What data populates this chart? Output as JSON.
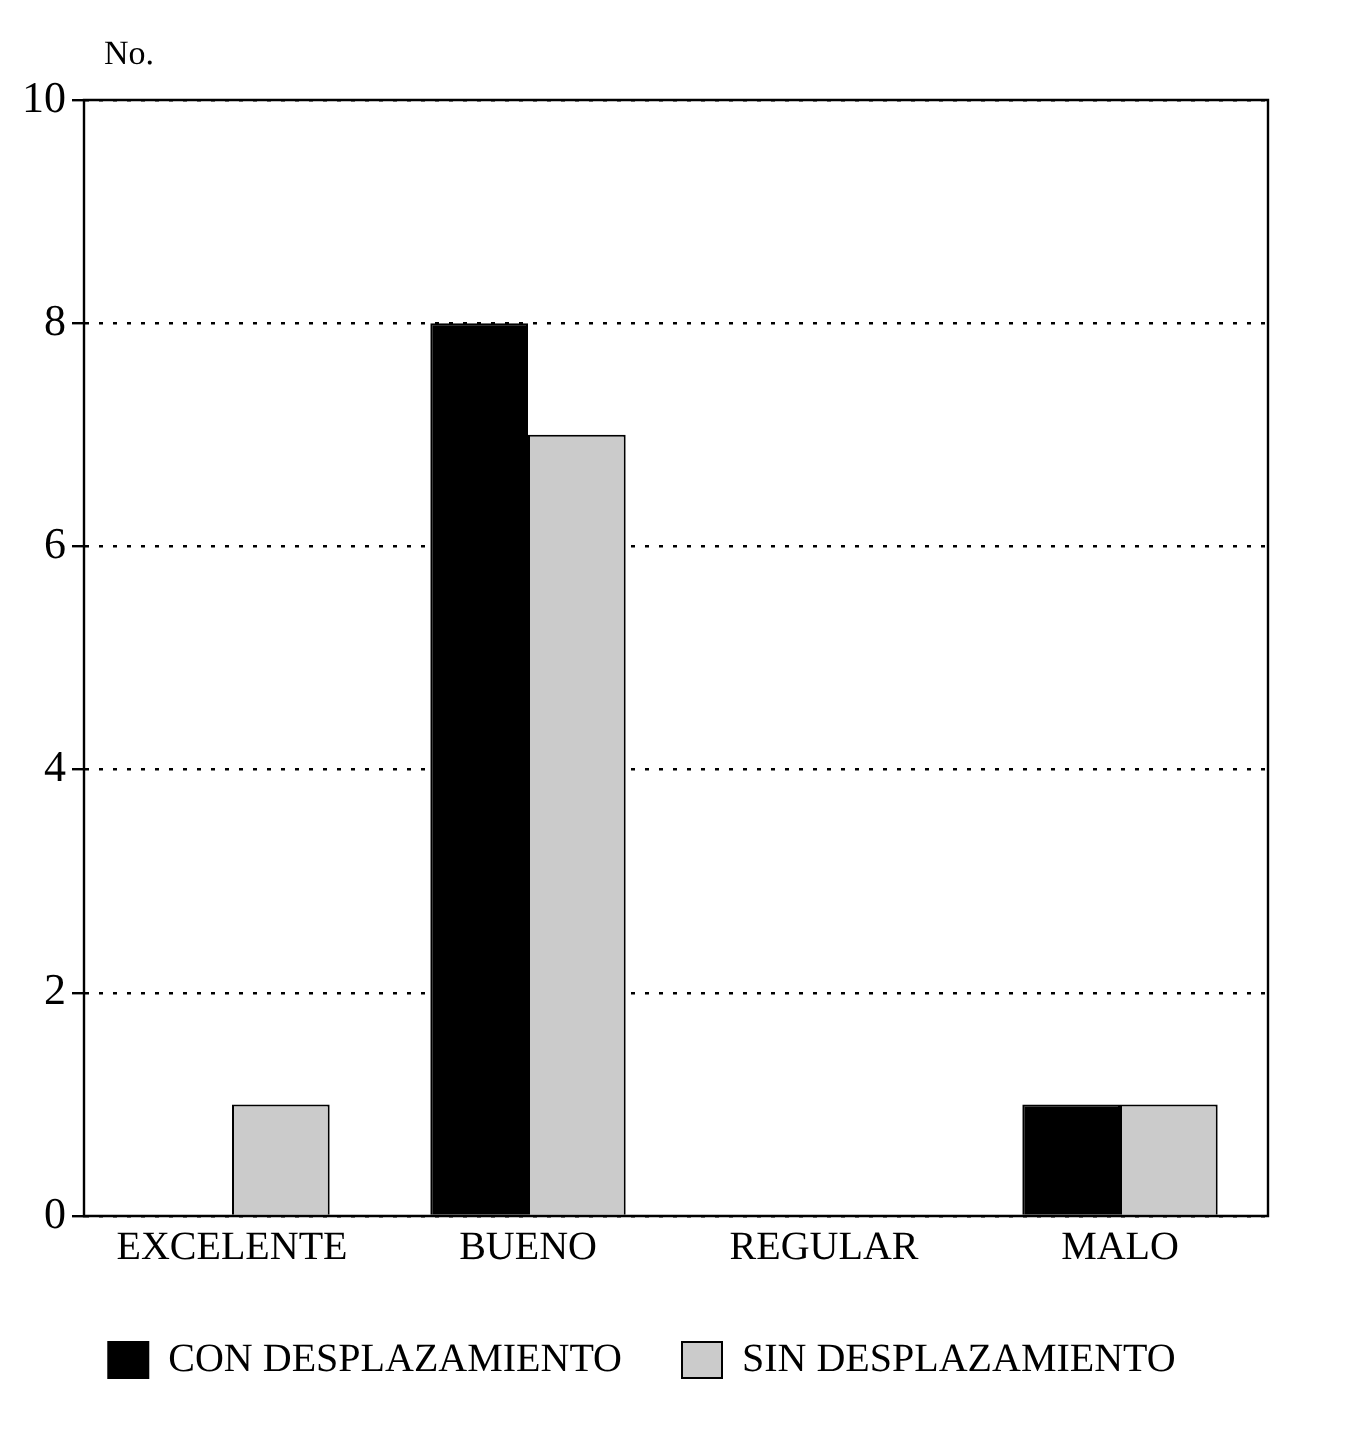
{
  "chart_data": {
    "type": "bar",
    "ylabel": "No.",
    "categories": [
      "EXCELENTE",
      "BUENO",
      "REGULAR",
      "MALO"
    ],
    "series": [
      {
        "name": "CON DESPLAZAMIENTO",
        "color": "#000000",
        "values": [
          0,
          8,
          0,
          1
        ]
      },
      {
        "name": "SIN DESPLAZAMIENTO",
        "color": "#cbcbcb",
        "values": [
          1,
          7,
          0,
          1
        ]
      }
    ],
    "ylim": [
      0,
      10
    ],
    "yticks": [
      0,
      2,
      4,
      6,
      8,
      10
    ],
    "grid": "y",
    "line_style": "dotted",
    "legend": "bottom"
  }
}
